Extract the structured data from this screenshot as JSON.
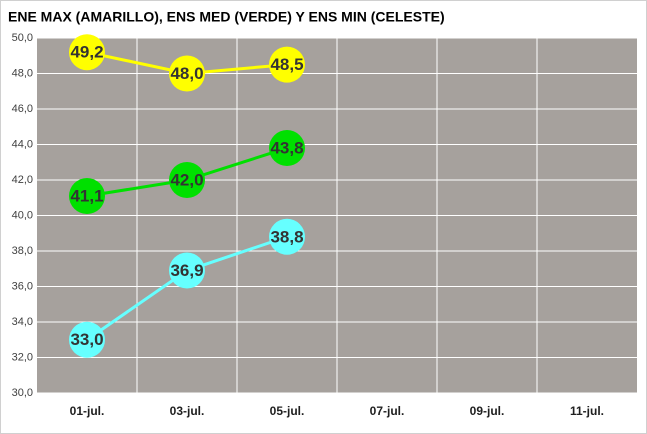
{
  "chart_data": {
    "type": "line",
    "title": "ENE MAX (AMARILLO), ENS MED (VERDE) Y ENS MIN (CELESTE)",
    "categories": [
      "01-jul.",
      "03-jul.",
      "05-jul.",
      "07-jul.",
      "09-jul.",
      "11-jul."
    ],
    "series": [
      {
        "color": "#ffff00",
        "values": [
          49.2,
          48.0,
          48.5,
          null,
          null,
          null
        ],
        "value_labels": [
          "49,2",
          "48,0",
          "48,5",
          null,
          null,
          null
        ]
      },
      {
        "color": "#00e000",
        "values": [
          41.1,
          42.0,
          43.8,
          null,
          null,
          null
        ],
        "value_labels": [
          "41,1",
          "42,0",
          "43,8",
          null,
          null,
          null
        ]
      },
      {
        "color": "#66ffff",
        "values": [
          33.0,
          36.9,
          38.8,
          null,
          null,
          null
        ],
        "value_labels": [
          "33,0",
          "36,9",
          "38,8",
          null,
          null,
          null
        ]
      }
    ],
    "ylim": [
      30,
      50
    ],
    "yticks": [
      {
        "value": 30,
        "label": "30,0"
      },
      {
        "value": 32,
        "label": "32,0"
      },
      {
        "value": 34,
        "label": "34,0"
      },
      {
        "value": 36,
        "label": "36,0"
      },
      {
        "value": 38,
        "label": "38,0"
      },
      {
        "value": 40,
        "label": "40,0"
      },
      {
        "value": 42,
        "label": "42,0"
      },
      {
        "value": 44,
        "label": "44,0"
      },
      {
        "value": 46,
        "label": "46,0"
      },
      {
        "value": 48,
        "label": "48,0"
      },
      {
        "value": 50,
        "label": "50,0"
      }
    ],
    "grid": true
  }
}
